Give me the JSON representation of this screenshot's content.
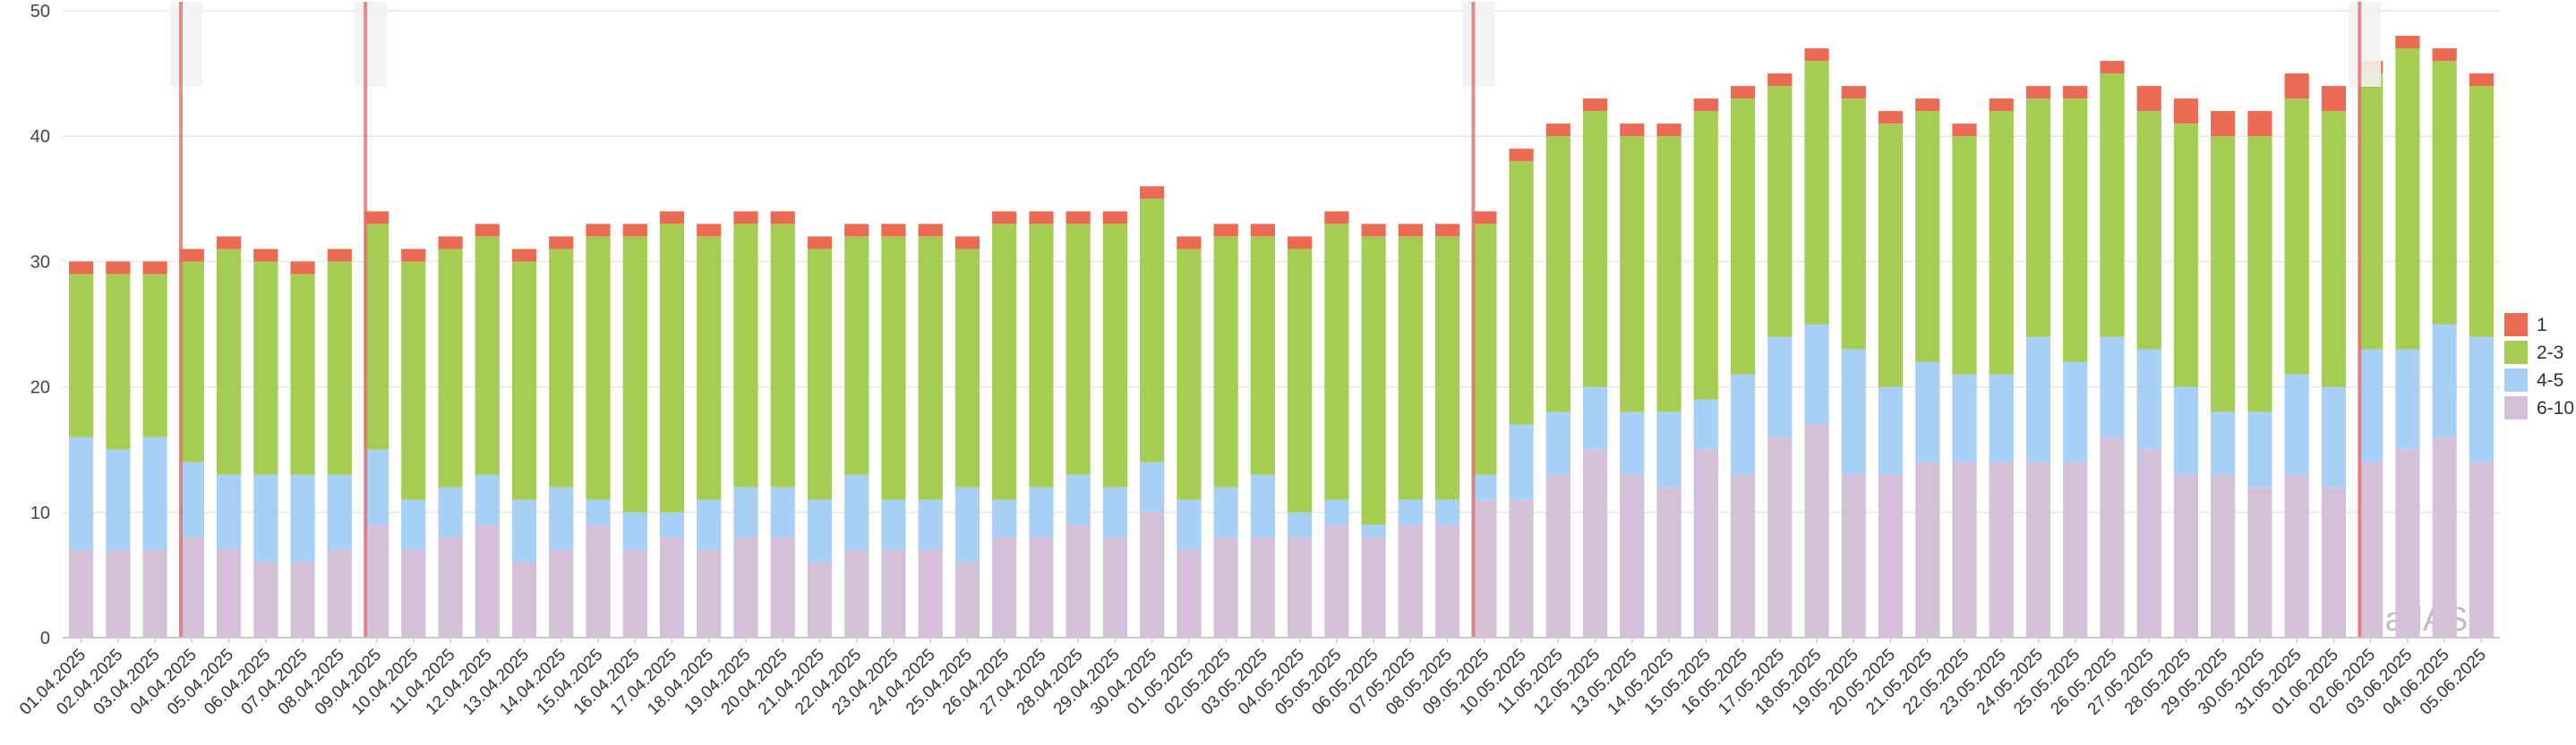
{
  "chart_data": {
    "type": "bar",
    "stacked": true,
    "title": "",
    "xlabel": "",
    "ylabel": "",
    "ylim": [
      0,
      50
    ],
    "ytick_values": [
      0,
      10,
      20,
      30,
      40,
      50
    ],
    "ytick_labels": [
      "0",
      "10",
      "20",
      "30",
      "40",
      "50"
    ],
    "grid": true,
    "legend_position": "right",
    "watermark": "RadASO",
    "categories": [
      "01.04.2025",
      "02.04.2025",
      "03.04.2025",
      "04.04.2025",
      "05.04.2025",
      "06.04.2025",
      "07.04.2025",
      "08.04.2025",
      "09.04.2025",
      "10.04.2025",
      "11.04.2025",
      "12.04.2025",
      "13.04.2025",
      "14.04.2025",
      "15.04.2025",
      "16.04.2025",
      "17.04.2025",
      "18.04.2025",
      "19.04.2025",
      "20.04.2025",
      "21.04.2025",
      "22.04.2025",
      "23.04.2025",
      "24.04.2025",
      "25.04.2025",
      "26.04.2025",
      "27.04.2025",
      "28.04.2025",
      "29.04.2025",
      "30.04.2025",
      "01.05.2025",
      "02.05.2025",
      "03.05.2025",
      "04.05.2025",
      "05.05.2025",
      "06.05.2025",
      "07.05.2025",
      "08.05.2025",
      "09.05.2025",
      "10.05.2025",
      "11.05.2025",
      "12.05.2025",
      "13.05.2025",
      "14.05.2025",
      "15.05.2025",
      "16.05.2025",
      "17.05.2025",
      "18.05.2025",
      "19.05.2025",
      "20.05.2025",
      "21.05.2025",
      "22.05.2025",
      "23.05.2025",
      "24.05.2025",
      "25.05.2025",
      "26.05.2025",
      "27.05.2025",
      "28.05.2025",
      "29.05.2025",
      "30.05.2025",
      "31.05.2025",
      "01.06.2025",
      "02.06.2025",
      "03.06.2025",
      "04.06.2025",
      "05.06.2025"
    ],
    "series": [
      {
        "name": "6-10",
        "color": "#d4c0d8",
        "values": [
          7,
          7,
          7,
          8,
          7,
          6,
          6,
          7,
          9,
          7,
          8,
          9,
          6,
          7,
          9,
          7,
          8,
          7,
          8,
          8,
          6,
          7,
          7,
          7,
          6,
          8,
          8,
          9,
          8,
          10,
          7,
          8,
          8,
          8,
          9,
          8,
          9,
          9,
          11,
          11,
          13,
          15,
          13,
          12,
          15,
          13,
          16,
          17,
          13,
          13,
          14,
          14,
          14,
          14,
          14,
          16,
          15,
          13,
          13,
          12,
          13,
          12,
          14,
          15,
          16,
          14
        ]
      },
      {
        "name": "4-5",
        "color": "#a8cff5",
        "values": [
          9,
          8,
          9,
          6,
          6,
          7,
          7,
          6,
          6,
          4,
          4,
          4,
          5,
          5,
          2,
          3,
          2,
          4,
          4,
          4,
          5,
          6,
          4,
          4,
          6,
          3,
          4,
          4,
          4,
          4,
          4,
          4,
          5,
          2,
          2,
          1,
          2,
          2,
          2,
          6,
          5,
          5,
          5,
          6,
          4,
          8,
          8,
          8,
          10,
          7,
          8,
          7,
          7,
          10,
          8,
          8,
          8,
          7,
          5,
          6,
          8,
          8,
          9,
          8,
          9,
          10
        ]
      },
      {
        "name": "2-3",
        "color": "#a5cd52",
        "values": [
          13,
          14,
          13,
          16,
          18,
          17,
          16,
          17,
          18,
          19,
          19,
          19,
          19,
          19,
          21,
          22,
          23,
          21,
          21,
          21,
          20,
          19,
          21,
          21,
          19,
          22,
          21,
          20,
          21,
          21,
          20,
          20,
          19,
          21,
          22,
          23,
          21,
          21,
          20,
          21,
          22,
          22,
          22,
          22,
          23,
          22,
          20,
          21,
          20,
          21,
          20,
          19,
          21,
          19,
          21,
          21,
          19,
          21,
          22,
          22,
          22,
          22,
          22,
          24,
          21,
          20
        ]
      },
      {
        "name": "1",
        "color": "#eb6a54",
        "values": [
          1,
          1,
          1,
          1,
          1,
          1,
          1,
          1,
          1,
          1,
          1,
          1,
          1,
          1,
          1,
          1,
          1,
          1,
          1,
          1,
          1,
          1,
          1,
          1,
          1,
          1,
          1,
          1,
          1,
          1,
          1,
          1,
          1,
          1,
          1,
          1,
          1,
          1,
          1,
          1,
          1,
          1,
          1,
          1,
          1,
          1,
          1,
          1,
          1,
          1,
          1,
          1,
          1,
          1,
          1,
          1,
          2,
          2,
          2,
          2,
          2,
          2,
          1,
          1,
          1,
          1
        ]
      }
    ],
    "markers": [
      "04.04.2025",
      "09.04.2025",
      "09.05.2025",
      "02.06.2025"
    ],
    "legend_order": [
      "1",
      "2-3",
      "4-5",
      "6-10"
    ]
  }
}
